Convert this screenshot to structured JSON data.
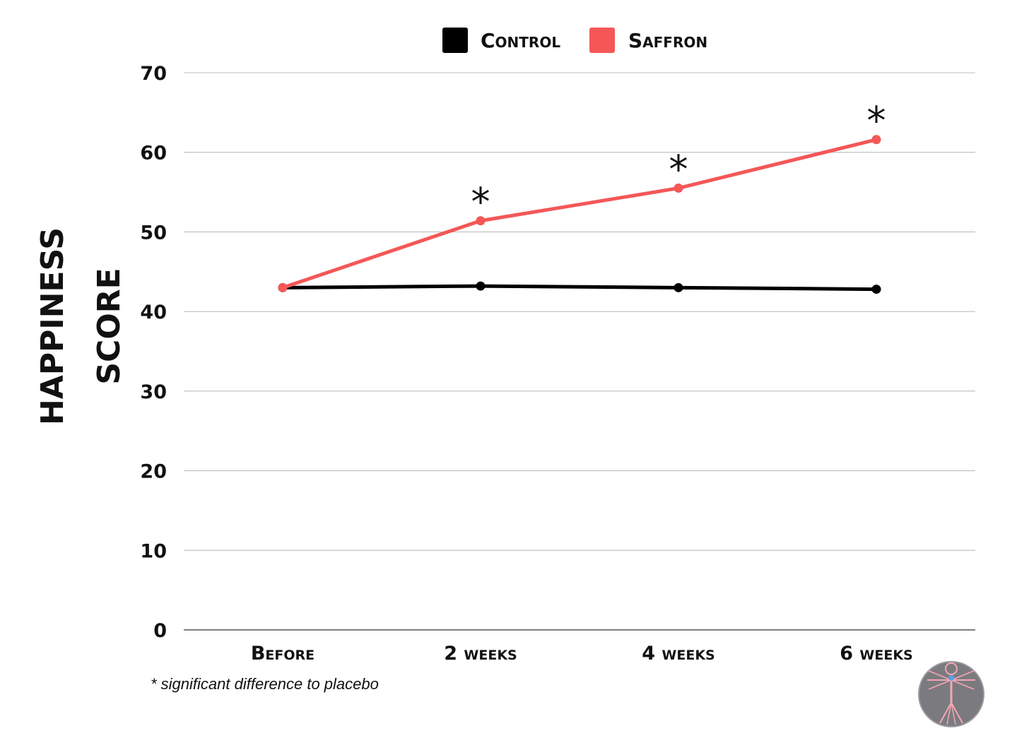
{
  "chart_data": {
    "type": "line",
    "categories": [
      "Before",
      "2 weeks",
      "4 weeks",
      "6 weeks"
    ],
    "series": [
      {
        "name": "Control",
        "color": "#000000",
        "values": [
          43.0,
          43.2,
          43.0,
          42.8
        ]
      },
      {
        "name": "Saffron",
        "color": "#f55757",
        "values": [
          43.0,
          51.4,
          55.5,
          61.6
        ]
      }
    ],
    "ylabel_lines": [
      "HAPPINESS",
      "SCORE"
    ],
    "xlabel": "",
    "ylim": [
      0,
      70
    ],
    "yticks": [
      0,
      10,
      20,
      30,
      40,
      50,
      60,
      70
    ],
    "grid": true,
    "legend_position": "top-center",
    "significance_marker": "*",
    "significant_points": [
      1,
      2,
      3
    ],
    "footnote": "* significant difference to placebo"
  },
  "logo": {
    "icon": "vitruvian-man-logo-icon"
  }
}
